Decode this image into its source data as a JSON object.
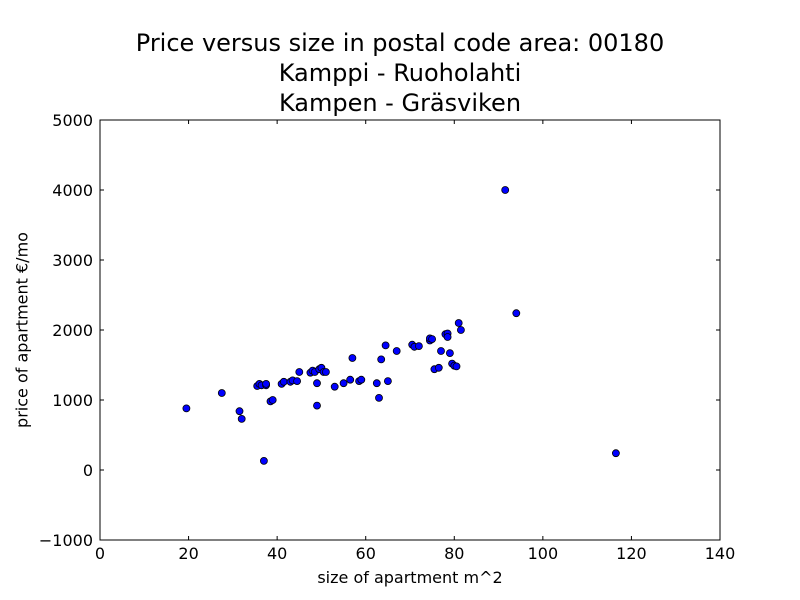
{
  "chart_data": {
    "type": "scatter",
    "title_lines": [
      "Price versus size in postal code area: 00180",
      "Kamppi - Ruoholahti",
      "Kampen - Gräsviken"
    ],
    "xlabel": "size of apartment m^2",
    "ylabel": "price of apartment €/mo",
    "xlim": [
      0,
      140
    ],
    "ylim": [
      -1000,
      5000
    ],
    "xticks": [
      0,
      20,
      40,
      60,
      80,
      100,
      120,
      140
    ],
    "yticks": [
      -1000,
      0,
      1000,
      2000,
      3000,
      4000,
      5000
    ],
    "ytick_labels": [
      "−1000",
      "0",
      "1000",
      "2000",
      "3000",
      "4000",
      "5000"
    ],
    "grid": false,
    "marker_color": "#0000ff",
    "marker_edge": "#000000",
    "points": [
      [
        19.5,
        880
      ],
      [
        27.5,
        1100
      ],
      [
        31.5,
        840
      ],
      [
        32,
        730
      ],
      [
        35.5,
        1200
      ],
      [
        36,
        1230
      ],
      [
        36.5,
        1210
      ],
      [
        37,
        130
      ],
      [
        37.5,
        1210
      ],
      [
        37.5,
        1230
      ],
      [
        38.5,
        980
      ],
      [
        39,
        1000
      ],
      [
        41,
        1230
      ],
      [
        41.5,
        1260
      ],
      [
        43,
        1260
      ],
      [
        43.5,
        1280
      ],
      [
        44.5,
        1270
      ],
      [
        45,
        1400
      ],
      [
        47.5,
        1390
      ],
      [
        48,
        1420
      ],
      [
        48.5,
        1400
      ],
      [
        49,
        1240
      ],
      [
        49,
        920
      ],
      [
        49.5,
        1440
      ],
      [
        50,
        1460
      ],
      [
        50.5,
        1400
      ],
      [
        51,
        1400
      ],
      [
        53,
        1190
      ],
      [
        55,
        1240
      ],
      [
        56.5,
        1290
      ],
      [
        57,
        1600
      ],
      [
        58.5,
        1270
      ],
      [
        59,
        1290
      ],
      [
        62.5,
        1240
      ],
      [
        63,
        1030
      ],
      [
        63.5,
        1580
      ],
      [
        64.5,
        1780
      ],
      [
        65,
        1270
      ],
      [
        67,
        1700
      ],
      [
        70.5,
        1790
      ],
      [
        71,
        1760
      ],
      [
        72,
        1770
      ],
      [
        74.5,
        1850
      ],
      [
        74.5,
        1880
      ],
      [
        75,
        1870
      ],
      [
        75.5,
        1440
      ],
      [
        76.5,
        1460
      ],
      [
        77,
        1700
      ],
      [
        78,
        1940
      ],
      [
        78.5,
        1950
      ],
      [
        78.5,
        1900
      ],
      [
        79,
        1670
      ],
      [
        79.5,
        1520
      ],
      [
        80,
        1490
      ],
      [
        80.5,
        1480
      ],
      [
        81,
        2100
      ],
      [
        81.5,
        2000
      ],
      [
        91.5,
        4000
      ],
      [
        94,
        2240
      ],
      [
        116.5,
        240
      ]
    ]
  }
}
